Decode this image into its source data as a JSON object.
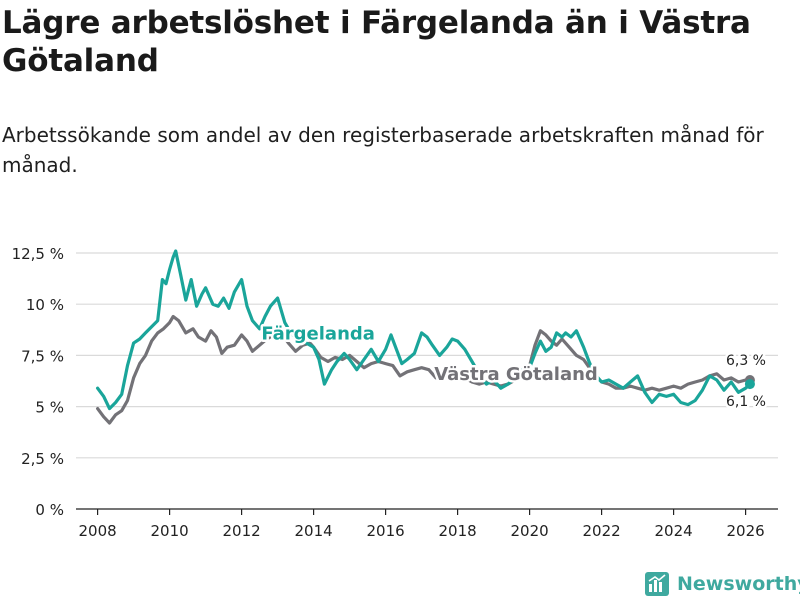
{
  "header": {
    "title": "Lägre arbetslöshet i Färgelanda än i Västra Götaland",
    "subtitle": "Arbetssökande som andel av den registerbaserade arbetskraften månad för månad."
  },
  "brand": {
    "name": "Newsworthy"
  },
  "colors": {
    "fargelanda": "#1aa59a",
    "vastra_gotaland": "#737277",
    "grid": "#dadada",
    "axis": "#222222"
  },
  "chart_data": {
    "type": "line",
    "title": "Lägre arbetslöshet i Färgelanda än i Västra Götaland",
    "xlabel": "",
    "ylabel": "",
    "xlim": [
      2007.4,
      2026.9
    ],
    "ylim": [
      0,
      12.5
    ],
    "x_ticks": [
      2008,
      2010,
      2012,
      2014,
      2016,
      2018,
      2020,
      2022,
      2024,
      2026
    ],
    "x_tick_labels": [
      "2008",
      "2010",
      "2012",
      "2014",
      "2016",
      "2018",
      "2020",
      "2022",
      "2024",
      "2026"
    ],
    "y_ticks": [
      0,
      2.5,
      5,
      7.5,
      10,
      12.5
    ],
    "y_tick_labels": [
      "0 %",
      "2,5 %",
      "5 %",
      "7,5 %",
      "10 %",
      "12,5 %"
    ],
    "series": [
      {
        "name": "Färgelanda",
        "label": "Färgelanda",
        "end_label": "6,1 %",
        "end_value": 6.1,
        "points": [
          [
            2008.0,
            5.9
          ],
          [
            2008.17,
            5.5
          ],
          [
            2008.33,
            4.9
          ],
          [
            2008.5,
            5.2
          ],
          [
            2008.67,
            5.6
          ],
          [
            2008.83,
            7.0
          ],
          [
            2009.0,
            8.1
          ],
          [
            2009.17,
            8.3
          ],
          [
            2009.33,
            8.6
          ],
          [
            2009.5,
            8.9
          ],
          [
            2009.67,
            9.2
          ],
          [
            2009.8,
            11.2
          ],
          [
            2009.9,
            11.0
          ],
          [
            2010.0,
            11.7
          ],
          [
            2010.1,
            12.3
          ],
          [
            2010.17,
            12.6
          ],
          [
            2010.3,
            11.5
          ],
          [
            2010.45,
            10.2
          ],
          [
            2010.6,
            11.2
          ],
          [
            2010.75,
            9.9
          ],
          [
            2010.9,
            10.5
          ],
          [
            2011.0,
            10.8
          ],
          [
            2011.2,
            10.0
          ],
          [
            2011.35,
            9.9
          ],
          [
            2011.5,
            10.3
          ],
          [
            2011.65,
            9.8
          ],
          [
            2011.8,
            10.6
          ],
          [
            2012.0,
            11.2
          ],
          [
            2012.15,
            9.9
          ],
          [
            2012.3,
            9.2
          ],
          [
            2012.5,
            8.8
          ],
          [
            2012.65,
            9.4
          ],
          [
            2012.8,
            9.9
          ],
          [
            2013.0,
            10.3
          ],
          [
            2013.2,
            9.1
          ],
          [
            2013.4,
            8.5
          ],
          [
            2013.6,
            8.3
          ],
          [
            2013.8,
            8.1
          ],
          [
            2014.0,
            7.9
          ],
          [
            2014.15,
            7.3
          ],
          [
            2014.3,
            6.1
          ],
          [
            2014.5,
            6.8
          ],
          [
            2014.65,
            7.2
          ],
          [
            2014.85,
            7.6
          ],
          [
            2015.0,
            7.3
          ],
          [
            2015.2,
            6.8
          ],
          [
            2015.4,
            7.3
          ],
          [
            2015.6,
            7.8
          ],
          [
            2015.8,
            7.2
          ],
          [
            2016.0,
            7.8
          ],
          [
            2016.15,
            8.5
          ],
          [
            2016.3,
            7.8
          ],
          [
            2016.45,
            7.1
          ],
          [
            2016.6,
            7.3
          ],
          [
            2016.8,
            7.6
          ],
          [
            2017.0,
            8.6
          ],
          [
            2017.15,
            8.4
          ],
          [
            2017.3,
            8.0
          ],
          [
            2017.5,
            7.5
          ],
          [
            2017.7,
            7.9
          ],
          [
            2017.85,
            8.3
          ],
          [
            2018.0,
            8.2
          ],
          [
            2018.2,
            7.8
          ],
          [
            2018.4,
            7.2
          ],
          [
            2018.6,
            6.6
          ],
          [
            2018.8,
            6.1
          ],
          [
            2019.0,
            6.3
          ],
          [
            2019.2,
            5.9
          ],
          [
            2019.4,
            6.1
          ],
          [
            2019.6,
            6.4
          ],
          [
            2019.8,
            6.8
          ],
          [
            2020.0,
            6.9
          ],
          [
            2020.15,
            7.6
          ],
          [
            2020.3,
            8.2
          ],
          [
            2020.45,
            7.7
          ],
          [
            2020.6,
            7.9
          ],
          [
            2020.75,
            8.6
          ],
          [
            2020.9,
            8.4
          ],
          [
            2021.0,
            8.6
          ],
          [
            2021.15,
            8.4
          ],
          [
            2021.3,
            8.7
          ],
          [
            2021.5,
            7.9
          ],
          [
            2021.65,
            7.2
          ],
          [
            2021.8,
            6.6
          ],
          [
            2022.0,
            6.2
          ],
          [
            2022.2,
            6.3
          ],
          [
            2022.4,
            6.1
          ],
          [
            2022.6,
            5.9
          ],
          [
            2022.8,
            6.2
          ],
          [
            2023.0,
            6.5
          ],
          [
            2023.2,
            5.7
          ],
          [
            2023.4,
            5.2
          ],
          [
            2023.6,
            5.6
          ],
          [
            2023.8,
            5.5
          ],
          [
            2024.0,
            5.6
          ],
          [
            2024.2,
            5.2
          ],
          [
            2024.4,
            5.1
          ],
          [
            2024.6,
            5.3
          ],
          [
            2024.8,
            5.8
          ],
          [
            2025.0,
            6.5
          ],
          [
            2025.2,
            6.3
          ],
          [
            2025.4,
            5.8
          ],
          [
            2025.6,
            6.2
          ],
          [
            2025.8,
            5.7
          ],
          [
            2026.0,
            5.9
          ],
          [
            2026.12,
            6.1
          ]
        ]
      },
      {
        "name": "Västra Götaland",
        "label": "Västra Götaland",
        "end_label": "6,3 %",
        "end_value": 6.3,
        "points": [
          [
            2008.0,
            4.9
          ],
          [
            2008.17,
            4.5
          ],
          [
            2008.33,
            4.2
          ],
          [
            2008.5,
            4.6
          ],
          [
            2008.67,
            4.8
          ],
          [
            2008.83,
            5.3
          ],
          [
            2009.0,
            6.4
          ],
          [
            2009.17,
            7.1
          ],
          [
            2009.33,
            7.5
          ],
          [
            2009.5,
            8.2
          ],
          [
            2009.67,
            8.6
          ],
          [
            2009.83,
            8.8
          ],
          [
            2010.0,
            9.1
          ],
          [
            2010.1,
            9.4
          ],
          [
            2010.25,
            9.2
          ],
          [
            2010.45,
            8.6
          ],
          [
            2010.65,
            8.8
          ],
          [
            2010.8,
            8.4
          ],
          [
            2011.0,
            8.2
          ],
          [
            2011.15,
            8.7
          ],
          [
            2011.3,
            8.4
          ],
          [
            2011.45,
            7.6
          ],
          [
            2011.6,
            7.9
          ],
          [
            2011.8,
            8.0
          ],
          [
            2012.0,
            8.5
          ],
          [
            2012.15,
            8.2
          ],
          [
            2012.3,
            7.7
          ],
          [
            2012.5,
            8.0
          ],
          [
            2012.7,
            8.3
          ],
          [
            2012.9,
            8.5
          ],
          [
            2013.1,
            8.6
          ],
          [
            2013.3,
            8.1
          ],
          [
            2013.5,
            7.7
          ],
          [
            2013.7,
            8.0
          ],
          [
            2013.9,
            8.1
          ],
          [
            2014.0,
            7.9
          ],
          [
            2014.2,
            7.4
          ],
          [
            2014.4,
            7.2
          ],
          [
            2014.6,
            7.4
          ],
          [
            2014.8,
            7.3
          ],
          [
            2015.0,
            7.5
          ],
          [
            2015.2,
            7.2
          ],
          [
            2015.4,
            6.9
          ],
          [
            2015.6,
            7.1
          ],
          [
            2015.8,
            7.2
          ],
          [
            2016.0,
            7.1
          ],
          [
            2016.2,
            7.0
          ],
          [
            2016.4,
            6.5
          ],
          [
            2016.6,
            6.7
          ],
          [
            2016.8,
            6.8
          ],
          [
            2017.0,
            6.9
          ],
          [
            2017.2,
            6.8
          ],
          [
            2017.4,
            6.4
          ],
          [
            2017.6,
            6.5
          ],
          [
            2017.8,
            6.6
          ],
          [
            2018.0,
            6.6
          ],
          [
            2018.2,
            6.4
          ],
          [
            2018.4,
            6.2
          ],
          [
            2018.6,
            6.1
          ],
          [
            2018.8,
            6.2
          ],
          [
            2019.0,
            6.1
          ],
          [
            2019.2,
            6.0
          ],
          [
            2019.4,
            6.1
          ],
          [
            2019.6,
            6.3
          ],
          [
            2019.8,
            6.6
          ],
          [
            2020.0,
            7.0
          ],
          [
            2020.15,
            8.0
          ],
          [
            2020.3,
            8.7
          ],
          [
            2020.45,
            8.5
          ],
          [
            2020.6,
            8.2
          ],
          [
            2020.75,
            8.0
          ],
          [
            2020.9,
            8.3
          ],
          [
            2021.1,
            7.9
          ],
          [
            2021.3,
            7.5
          ],
          [
            2021.5,
            7.3
          ],
          [
            2021.7,
            6.8
          ],
          [
            2021.85,
            6.5
          ],
          [
            2022.0,
            6.2
          ],
          [
            2022.2,
            6.1
          ],
          [
            2022.4,
            5.9
          ],
          [
            2022.6,
            5.9
          ],
          [
            2022.8,
            6.0
          ],
          [
            2023.0,
            5.9
          ],
          [
            2023.2,
            5.8
          ],
          [
            2023.4,
            5.9
          ],
          [
            2023.6,
            5.8
          ],
          [
            2023.8,
            5.9
          ],
          [
            2024.0,
            6.0
          ],
          [
            2024.2,
            5.9
          ],
          [
            2024.4,
            6.1
          ],
          [
            2024.6,
            6.2
          ],
          [
            2024.8,
            6.3
          ],
          [
            2025.0,
            6.5
          ],
          [
            2025.2,
            6.6
          ],
          [
            2025.4,
            6.3
          ],
          [
            2025.6,
            6.4
          ],
          [
            2025.8,
            6.2
          ],
          [
            2026.0,
            6.3
          ],
          [
            2026.12,
            6.3
          ]
        ]
      }
    ]
  }
}
